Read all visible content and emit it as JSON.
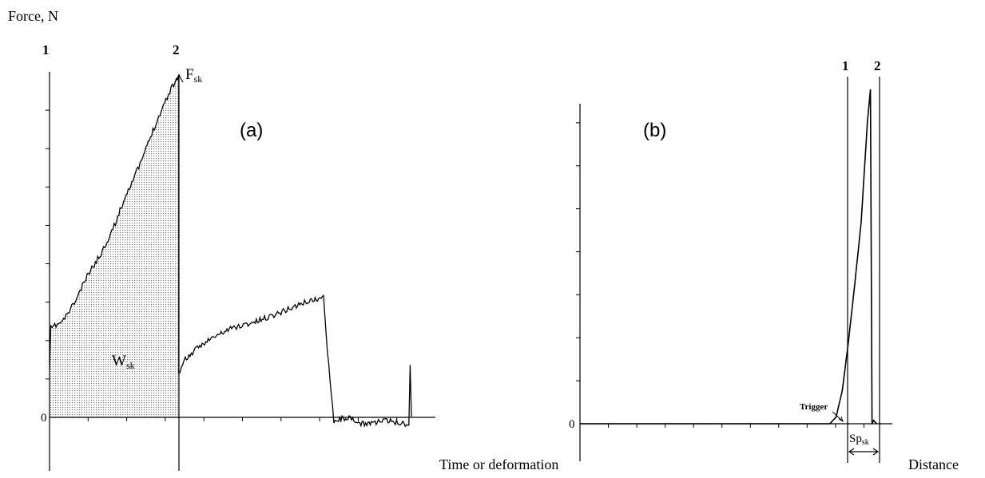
{
  "figure": {
    "y_axis_label": "Force, N",
    "background": "#ffffff",
    "ink_color": "#000000"
  },
  "chart_data": [
    {
      "panel": "(a)",
      "type": "line",
      "title": "(a)",
      "xlabel": "Time or deformation",
      "ylabel": "Force, N",
      "zero_label": "0",
      "markers": [
        "1",
        "2"
      ],
      "peak_label": "F",
      "peak_sub": "sk",
      "area_label": "W",
      "area_sub": "sk",
      "area_fill": "dotted",
      "x_ticks": 9,
      "y_ticks": 8,
      "series": [
        {
          "x": [
            0,
            0.01,
            0.05,
            0.1,
            0.2,
            0.3,
            0.4,
            0.5,
            0.6,
            0.7,
            0.8,
            0.9,
            0.95,
            1.0,
            1.0,
            1.05,
            1.2,
            1.4,
            1.6,
            1.8,
            2.0,
            2.12,
            2.15,
            2.2,
            2.3,
            2.4,
            2.6,
            2.78,
            2.79,
            2.8
          ],
          "y": [
            0.14,
            0.26,
            0.27,
            0.28,
            0.34,
            0.42,
            0.48,
            0.56,
            0.66,
            0.74,
            0.84,
            0.93,
            0.97,
            1.0,
            0.13,
            0.17,
            0.22,
            0.26,
            0.28,
            0.31,
            0.34,
            0.35,
            0.2,
            -0.01,
            0.0,
            -0.02,
            -0.01,
            -0.02,
            0.15,
            0.0
          ]
        }
      ]
    },
    {
      "panel": "(b)",
      "type": "line",
      "title": "(b)",
      "xlabel": "Distance",
      "zero_label": "0",
      "markers": [
        "1",
        "2"
      ],
      "trigger_label": "Trigger",
      "span_label": "Sp",
      "span_sub": "sk",
      "x_ticks": 10,
      "y_ticks": 7,
      "series": [
        {
          "x": [
            0,
            0.8,
            0.82,
            0.84,
            0.86,
            0.88,
            0.9,
            0.92,
            0.93,
            0.935,
            0.94,
            0.95
          ],
          "y": [
            0,
            0,
            0.02,
            0.1,
            0.25,
            0.42,
            0.6,
            0.9,
            1.0,
            0.0,
            0.01,
            0.0
          ]
        }
      ]
    }
  ]
}
